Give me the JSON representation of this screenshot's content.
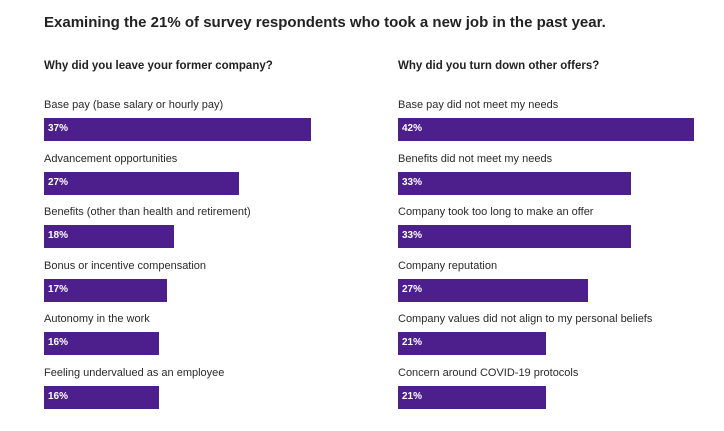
{
  "title": "Examining the 21% of survey respondents who took a new job in the past year.",
  "colors": {
    "bar": "#4d1f8c",
    "bar_text": "#ffffff"
  },
  "chart_data": [
    {
      "type": "bar",
      "orientation": "horizontal",
      "title": "Why did you leave your former company?",
      "categories": [
        "Base pay (base salary or hourly pay)",
        "Advancement opportunities",
        "Benefits (other than health and retirement)",
        "Bonus or incentive compensation",
        "Autonomy in the work",
        "Feeling undervalued as an employee"
      ],
      "values": [
        37,
        27,
        18,
        17,
        16,
        16
      ],
      "value_labels": [
        "37%",
        "27%",
        "18%",
        "17%",
        "16%",
        "16%"
      ],
      "xlim": [
        0,
        42
      ]
    },
    {
      "type": "bar",
      "orientation": "horizontal",
      "title": "Why did you turn down other offers?",
      "categories": [
        "Base pay did not meet my needs",
        "Benefits did not meet my needs",
        "Company took too long to make an offer",
        "Company reputation",
        "Company values did not align to my personal beliefs",
        "Concern around COVID-19 protocols"
      ],
      "values": [
        42,
        33,
        33,
        27,
        21,
        21
      ],
      "value_labels": [
        "42%",
        "33%",
        "33%",
        "27%",
        "21%",
        "21%"
      ],
      "xlim": [
        0,
        42
      ]
    }
  ]
}
